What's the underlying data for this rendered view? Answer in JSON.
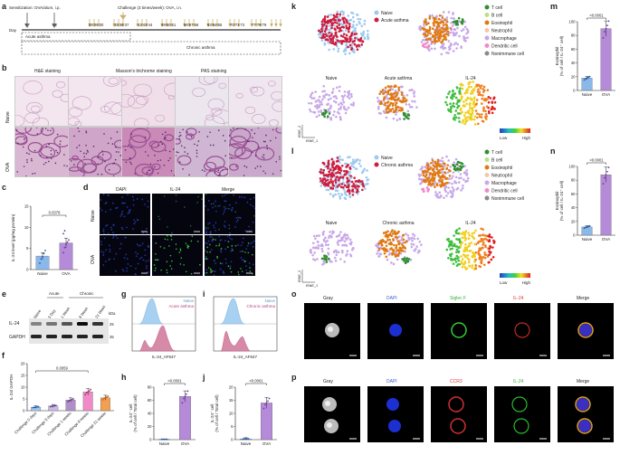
{
  "panels": {
    "a": "a",
    "b": "b",
    "c": "c",
    "d": "d",
    "e": "e",
    "f": "f",
    "g": "g",
    "h": "h",
    "i": "i",
    "j": "j",
    "k": "k",
    "l": "l",
    "m": "m",
    "n": "n",
    "o": "o",
    "p": "p"
  },
  "timeline": {
    "sensitization": "Sensitization: OVA/alum, i.p.",
    "challenge": "Challenge (3 times/week): OVA, i.n.",
    "day_label": "Day",
    "days": [
      "0",
      "14",
      "28 29 30",
      "35 36 37",
      "42 43 44",
      "49 50 51",
      "56 57 58",
      "63 64 65",
      "70 71 72",
      "77 78 79"
    ],
    "acute": "Acute asthma",
    "chronic": "Chronic asthma"
  },
  "histology": {
    "headers": [
      "H&E staining",
      "Masson's trichrome staining",
      "PAS staining"
    ],
    "rows": [
      "Naive",
      "OVA"
    ]
  },
  "panel_c": {
    "ylabel": "IL-24 level (pg/mg protein)",
    "pvalue": "0.0378",
    "yticks": [
      "0",
      "5",
      "10",
      "15"
    ],
    "groups": [
      "Naive",
      "OVA"
    ],
    "naive_points": [
      1.5,
      2.5,
      3.0,
      3.8,
      4.5
    ],
    "ova_points": [
      4.0,
      5.2,
      6.0,
      6.5,
      7.0,
      8.5,
      9.2
    ]
  },
  "panel_d": {
    "headers": [
      "DAPI",
      "IL-24",
      "Merge"
    ],
    "rows": [
      "Naive",
      "OVA"
    ]
  },
  "panel_e": {
    "acute": "Acute",
    "chronic": "Chronic",
    "lanes": [
      "Naive",
      "5 Day",
      "1 Week",
      "8 Week",
      "21 Week"
    ],
    "proteins": [
      "IL-24",
      "GAPDH"
    ],
    "kda_label": "kDa",
    "kda": [
      "25",
      "35"
    ]
  },
  "panel_f": {
    "ylabel": "IL-24/ GAPDH",
    "pvalue": "0.0059",
    "yticks": [
      "0",
      "5",
      "10",
      "15",
      "20"
    ],
    "groups": [
      "Challenge 0 days",
      "Challenge 5 days",
      "Challenge 1 weeks",
      "Challenge 8 weeks",
      "Challenge 21 weeks"
    ],
    "means": [
      1.5,
      2.0,
      4.5,
      8.0,
      5.5
    ]
  },
  "panel_g": {
    "legend": [
      "Naive",
      "Acute asthma"
    ],
    "xlabel": "IL-24_AF647"
  },
  "panel_i": {
    "legend": [
      "Naive",
      "Chronic asthma"
    ],
    "xlabel": "IL-24_AF647"
  },
  "panel_h": {
    "ylabel_1": "IL-24⁺ cell",
    "ylabel_2": "(% of cell / Total cell)",
    "pvalue": "<0.0001",
    "yticks": [
      "0",
      "20",
      "40",
      "60",
      "80"
    ],
    "groups": [
      "Naive",
      "OVA"
    ],
    "means": [
      0.5,
      66
    ]
  },
  "panel_j": {
    "ylabel_1": "IL-24⁺ cell",
    "ylabel_2": "(% of cell / Total cell)",
    "pvalue": "<0.0001",
    "yticks": [
      "0",
      "5",
      "10",
      "15",
      "20"
    ],
    "groups": [
      "Naive",
      "OVA"
    ],
    "means": [
      0.3,
      14
    ]
  },
  "panel_k": {
    "legend_groups": [
      "Naive",
      "Acute asthma"
    ],
    "legend_cells": [
      "T cell",
      "B cell",
      "Eosinophil",
      "Neutrophil",
      "Macrophage",
      "Dendritic cell",
      "Nonimmune cell"
    ],
    "titles": [
      "Naive",
      "Acute asthma",
      "IL-24"
    ],
    "tsne_y": "tSNE_2",
    "tsne_x": "tSNE_1",
    "scale": [
      "Low",
      "High"
    ]
  },
  "panel_l": {
    "legend_groups": [
      "Naive",
      "Chronic asthma"
    ],
    "legend_cells": [
      "T cell",
      "B cell",
      "Eosinophil",
      "Neutrophil",
      "Macrophage",
      "Dendritic cell",
      "Nonimmune cell"
    ],
    "titles": [
      "Naive",
      "Chronic asthma",
      "IL-24"
    ],
    "tsne_y": "tSNE_2",
    "tsne_x": "tSNE_1",
    "scale": [
      "Low",
      "High"
    ]
  },
  "panel_m": {
    "ylabel_1": "Eosinophil",
    "ylabel_2": "(% of cell / IL-24⁺ cell)",
    "pvalue": "<0.0001",
    "yticks": [
      "0",
      "20",
      "40",
      "60",
      "80",
      "100"
    ],
    "groups": [
      "Naive",
      "OVA"
    ],
    "means": [
      18,
      90
    ]
  },
  "panel_n": {
    "ylabel_1": "Eosinophil",
    "ylabel_2": "(% of cell / IL-24⁺ cell)",
    "pvalue": "<0.0001",
    "yticks": [
      "0",
      "20",
      "40",
      "60",
      "80",
      "100"
    ],
    "groups": [
      "Naive",
      "OVA"
    ],
    "means": [
      12,
      88
    ]
  },
  "panel_o": {
    "headers": [
      "Gray",
      "DAPI",
      "Siglec F",
      "IL-24",
      "Merge"
    ]
  },
  "panel_p": {
    "headers": [
      "Gray",
      "DAPI",
      "CCR3",
      "IL-24",
      "Merge"
    ]
  },
  "colors": {
    "naive": "#9ec9f0",
    "acute": "#d01c3c",
    "tcell": "#2f8f2f",
    "bcell": "#b8e08a",
    "eos": "#e07a10",
    "neut": "#f6c7a8",
    "mac": "#c8a8e8",
    "dc": "#f08ac8",
    "nonimm": "#8a8a8a",
    "purple": "#b58ad8",
    "blue_bar": "#8ab8e8"
  }
}
